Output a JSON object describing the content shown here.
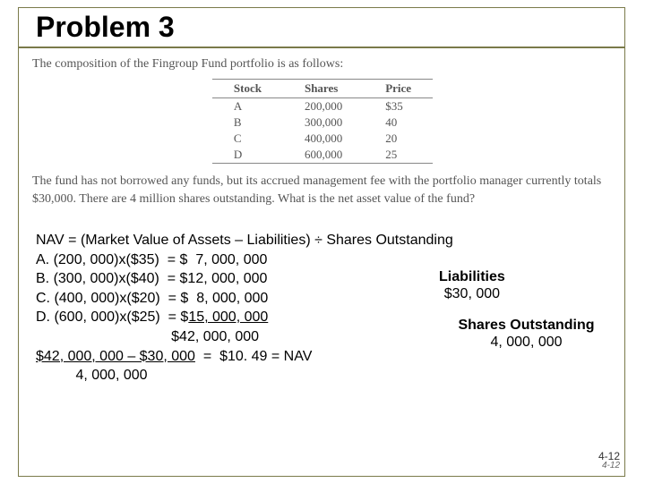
{
  "title": "Problem 3",
  "embedded": {
    "intro": "The composition of the Fingroup Fund portfolio is as follows:",
    "table": {
      "headers": [
        "Stock",
        "Shares",
        "Price"
      ],
      "rows": [
        [
          "A",
          "200,000",
          "$35"
        ],
        [
          "B",
          "300,000",
          "40"
        ],
        [
          "C",
          "400,000",
          "20"
        ],
        [
          "D",
          "600,000",
          "25"
        ]
      ]
    },
    "desc": "The fund has not borrowed any funds, but its accrued management fee with the portfolio manager currently totals $30,000. There are 4 million shares outstanding. What is the net asset value of the fund?"
  },
  "solution": {
    "formula": "NAV = (Market Value of Assets – Liabilities) ÷ Shares Outstanding",
    "lines": [
      "A. (200, 000)x($35)  = $  7, 000, 000",
      "B. (300, 000)x($40)  = $12, 000, 000",
      "C. (400, 000)x($20)  = $  8, 000, 000"
    ],
    "line_d_prefix": "D. (600, 000)x($25)  = $",
    "line_d_under": "15, 000, 000",
    "total_line": "                                  $42, 000, 000",
    "final_top_prefix": "$42, 000, 000 – $30, 000",
    "final_top_rest": "  =  $10. 49 = NAV",
    "final_bottom": "          4, 000, 000"
  },
  "liabilities": {
    "label": "Liabilities",
    "value": "$30, 000"
  },
  "shares": {
    "label": "Shares Outstanding",
    "value": "4, 000, 000"
  },
  "page": {
    "main": "4-12",
    "sub": "4-12"
  }
}
